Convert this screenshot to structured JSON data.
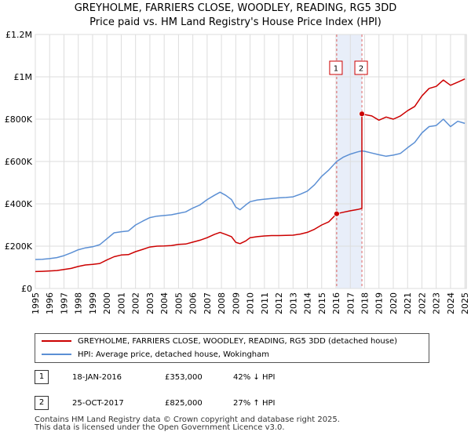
{
  "chart_data": {
    "type": "line",
    "title": "GREYHOLME, FARRIERS CLOSE, WOODLEY, READING, RG5 3DD",
    "subtitle": "Price paid vs. HM Land Registry's House Price Index (HPI)",
    "xlabel": "",
    "ylabel": "",
    "xlim": [
      1995,
      2025.1
    ],
    "ylim": [
      0,
      1200000
    ],
    "y_ticks": [
      {
        "value": 0,
        "label": "£0"
      },
      {
        "value": 200000,
        "label": "£200K"
      },
      {
        "value": 400000,
        "label": "£400K"
      },
      {
        "value": 600000,
        "label": "£600K"
      },
      {
        "value": 800000,
        "label": "£800K"
      },
      {
        "value": 1000000,
        "label": "£1M"
      },
      {
        "value": 1200000,
        "label": "£1.2M"
      }
    ],
    "x_ticks": [
      "1995",
      "1996",
      "1997",
      "1998",
      "1999",
      "2000",
      "2001",
      "2002",
      "2003",
      "2004",
      "2005",
      "2006",
      "2007",
      "2008",
      "2009",
      "2010",
      "2011",
      "2012",
      "2013",
      "2014",
      "2015",
      "2016",
      "2017",
      "2018",
      "2019",
      "2020",
      "2021",
      "2022",
      "2023",
      "2024",
      "2025"
    ],
    "grid": true,
    "series": [
      {
        "name": "GREYHOLME, FARRIERS CLOSE, WOODLEY, READING, RG5 3DD (detached house)",
        "color": "#cc0000",
        "x": [
          1995.0,
          1995.5,
          1996.0,
          1996.5,
          1997.0,
          1997.5,
          1998.0,
          1998.5,
          1999.0,
          1999.5,
          2000.0,
          2000.5,
          2001.0,
          2001.5,
          2002.0,
          2002.5,
          2003.0,
          2003.5,
          2004.0,
          2004.5,
          2005.0,
          2005.5,
          2006.0,
          2006.5,
          2007.0,
          2007.5,
          2007.9,
          2008.3,
          2008.7,
          2009.0,
          2009.3,
          2009.7,
          2010.0,
          2010.5,
          2011.0,
          2011.5,
          2012.0,
          2012.5,
          2013.0,
          2013.5,
          2014.0,
          2014.5,
          2015.0,
          2015.5,
          2016.05,
          2016.5,
          2017.0,
          2017.5,
          2017.81,
          2017.81,
          2018.0,
          2018.5,
          2019.0,
          2019.5,
          2020.0,
          2020.5,
          2021.0,
          2021.5,
          2022.0,
          2022.5,
          2023.0,
          2023.5,
          2024.0,
          2024.5,
          2025.0
        ],
        "values": [
          80000,
          81000,
          83000,
          85000,
          90000,
          95000,
          104000,
          111000,
          114000,
          118000,
          135000,
          150000,
          158000,
          160000,
          174000,
          185000,
          196000,
          200000,
          201000,
          203000,
          208000,
          210000,
          219000,
          228000,
          240000,
          255000,
          265000,
          255000,
          245000,
          218000,
          212000,
          225000,
          240000,
          245000,
          248000,
          250000,
          250000,
          251000,
          252000,
          257000,
          265000,
          280000,
          300000,
          315000,
          353000,
          360000,
          367000,
          373000,
          378000,
          825000,
          822000,
          815000,
          795000,
          810000,
          800000,
          815000,
          840000,
          860000,
          910000,
          945000,
          955000,
          985000,
          960000,
          975000,
          990000
        ]
      },
      {
        "name": "HPI: Average price, detached house, Wokingham",
        "color": "#5b8fd4",
        "x": [
          1995.0,
          1995.5,
          1996.0,
          1996.5,
          1997.0,
          1997.5,
          1998.0,
          1998.5,
          1999.0,
          1999.5,
          2000.0,
          2000.5,
          2001.0,
          2001.5,
          2002.0,
          2002.5,
          2003.0,
          2003.5,
          2004.0,
          2004.5,
          2005.0,
          2005.5,
          2006.0,
          2006.5,
          2007.0,
          2007.5,
          2007.9,
          2008.3,
          2008.7,
          2009.0,
          2009.3,
          2009.7,
          2010.0,
          2010.5,
          2011.0,
          2011.5,
          2012.0,
          2012.5,
          2013.0,
          2013.5,
          2014.0,
          2014.5,
          2015.0,
          2015.5,
          2016.05,
          2016.5,
          2017.0,
          2017.5,
          2017.81,
          2018.0,
          2018.5,
          2019.0,
          2019.5,
          2020.0,
          2020.5,
          2021.0,
          2021.5,
          2022.0,
          2022.5,
          2023.0,
          2023.5,
          2024.0,
          2024.5,
          2025.0
        ],
        "values": [
          137000,
          138000,
          141000,
          146000,
          155000,
          168000,
          183000,
          192000,
          197000,
          207000,
          235000,
          263000,
          268000,
          272000,
          300000,
          318000,
          335000,
          342000,
          345000,
          348000,
          355000,
          362000,
          380000,
          395000,
          420000,
          440000,
          455000,
          440000,
          420000,
          385000,
          372000,
          395000,
          410000,
          418000,
          422000,
          425000,
          428000,
          430000,
          433000,
          445000,
          460000,
          490000,
          530000,
          560000,
          600000,
          620000,
          635000,
          645000,
          650000,
          648000,
          640000,
          632000,
          625000,
          630000,
          638000,
          665000,
          690000,
          735000,
          765000,
          770000,
          800000,
          765000,
          790000,
          780000
        ]
      }
    ],
    "sales": [
      {
        "id": "1",
        "x": 2016.05,
        "value": 353000
      },
      {
        "id": "2",
        "x": 2017.81,
        "value": 825000
      }
    ],
    "annotations": [
      {
        "label": "1",
        "x": 2016.05
      },
      {
        "label": "2",
        "x": 2017.81
      }
    ]
  },
  "legend": {
    "property_label": "GREYHOLME, FARRIERS CLOSE, WOODLEY, READING, RG5 3DD (detached house)",
    "hpi_label": "HPI: Average price, detached house, Wokingham"
  },
  "transactions": [
    {
      "id": "1",
      "date": "18-JAN-2016",
      "price": "£353,000",
      "hpi": "42% ↓ HPI"
    },
    {
      "id": "2",
      "date": "25-OCT-2017",
      "price": "£825,000",
      "hpi": "27% ↑ HPI"
    }
  ],
  "footer": {
    "line1": "Contains HM Land Registry data © Crown copyright and database right 2025.",
    "line2": "This data is licensed under the Open Government Licence v3.0."
  },
  "colors": {
    "property": "#cc0000",
    "hpi": "#5b8fd4",
    "highlight": "#e8eef9",
    "marker_line": "#e06666"
  }
}
